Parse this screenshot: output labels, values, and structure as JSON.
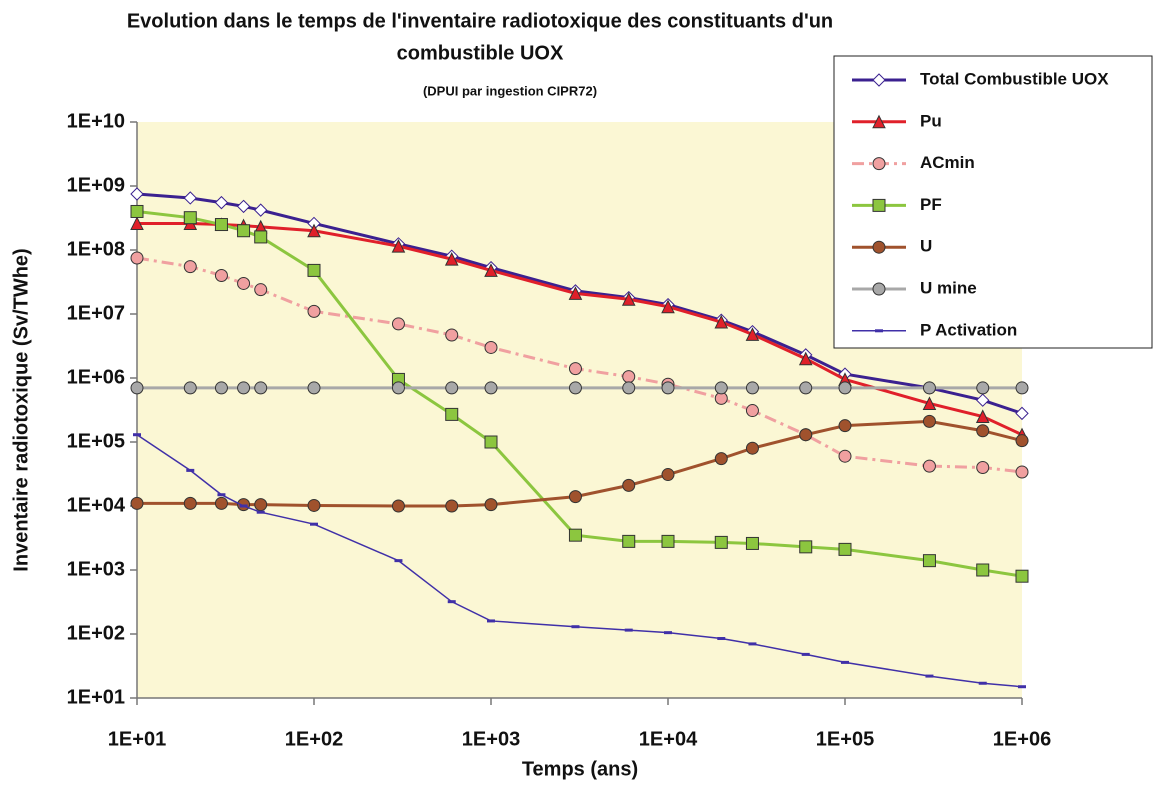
{
  "chart_data": {
    "type": "line",
    "title": [
      "Evolution dans le temps de l'inventaire radiotoxique des constituants d'un",
      "combustible UOX"
    ],
    "subtitle": "(DPUI par ingestion CIPR72)",
    "xlabel": "Temps (ans)",
    "ylabel": "Inventaire radiotoxique (Sv/TWhe)",
    "log_x": true,
    "log_y": true,
    "x": [
      10,
      20,
      30,
      40,
      50,
      100,
      300,
      600,
      1000,
      3000,
      6000,
      10000,
      20000,
      30000,
      60000,
      100000,
      300000,
      600000,
      1000000
    ],
    "series": [
      {
        "name": "Total Combustible UOX",
        "color": "#3b2190",
        "marker": "diamond",
        "values": [
          750000000,
          650000000,
          550000000,
          480000000,
          420000000,
          260000000,
          125000000,
          80000000,
          53000000,
          23000000,
          18000000,
          14000000,
          8000000,
          5300000,
          2300000,
          1150000,
          700000,
          450000,
          280000
        ]
      },
      {
        "name": "Pu",
        "color": "#e0202a",
        "marker": "triangle",
        "values": [
          260000000,
          260000000,
          250000000,
          240000000,
          230000000,
          200000000,
          115000000,
          72000000,
          48000000,
          21000000,
          17000000,
          13000000,
          7500000,
          4800000,
          2000000,
          950000,
          400000,
          250000,
          130000
        ]
      },
      {
        "name": "ACmin",
        "color": "#f0a0a0",
        "marker": "circle",
        "dash": true,
        "values": [
          75000000,
          55000000,
          40000000,
          30000000,
          24000000,
          11000000,
          7000000,
          4700000,
          3000000,
          1400000,
          1050000,
          800000,
          480000,
          310000,
          130000,
          60000,
          42000,
          40000,
          34000
        ]
      },
      {
        "name": "PF",
        "color": "#8cc63f",
        "marker": "square",
        "values": [
          400000000,
          320000000,
          250000000,
          200000000,
          160000000,
          48000000,
          950000,
          270000,
          100000,
          3500,
          2800,
          2800,
          2700,
          2600,
          2300,
          2100,
          1400,
          1000,
          800
        ]
      },
      {
        "name": "U",
        "color": "#a0522d",
        "marker": "circle",
        "values": [
          11000,
          11000,
          11000,
          10500,
          10500,
          10200,
          10000,
          10000,
          10500,
          14000,
          21000,
          31000,
          55000,
          80000,
          130000,
          180000,
          210000,
          150000,
          105000
        ]
      },
      {
        "name": "U mine",
        "color": "#a8a8a8",
        "marker": "circle",
        "values": [
          700000,
          700000,
          700000,
          700000,
          700000,
          700000,
          700000,
          700000,
          700000,
          700000,
          700000,
          700000,
          700000,
          700000,
          700000,
          700000,
          700000,
          700000,
          700000
        ]
      },
      {
        "name": "P Activation",
        "color": "#4030a8",
        "marker": "dash",
        "values": [
          130000,
          36000,
          15000,
          10000,
          8000,
          5200,
          1400,
          320,
          160,
          130,
          115,
          105,
          85,
          70,
          48,
          36,
          22,
          17,
          15
        ]
      }
    ],
    "xlim": [
      10,
      1000000
    ],
    "xticks": [
      {
        "value": 10,
        "label": "1E+01"
      },
      {
        "value": 100,
        "label": "1E+02"
      },
      {
        "value": 1000,
        "label": "1E+03"
      },
      {
        "value": 10000,
        "label": "1E+04"
      },
      {
        "value": 100000,
        "label": "1E+05"
      },
      {
        "value": 1000000,
        "label": "1E+06"
      }
    ],
    "ylim": [
      10,
      10000000000
    ],
    "yticks": [
      {
        "value": 10,
        "label": "1E+01"
      },
      {
        "value": 100,
        "label": "1E+02"
      },
      {
        "value": 1000,
        "label": "1E+03"
      },
      {
        "value": 10000,
        "label": "1E+04"
      },
      {
        "value": 100000,
        "label": "1E+05"
      },
      {
        "value": 1000000,
        "label": "1E+06"
      },
      {
        "value": 10000000,
        "label": "1E+07"
      },
      {
        "value": 100000000,
        "label": "1E+08"
      },
      {
        "value": 1000000000,
        "label": "1E+09"
      },
      {
        "value": 10000000000,
        "label": "1E+10"
      }
    ],
    "legend": "upper right",
    "plot_background": "#fbf7d4"
  }
}
